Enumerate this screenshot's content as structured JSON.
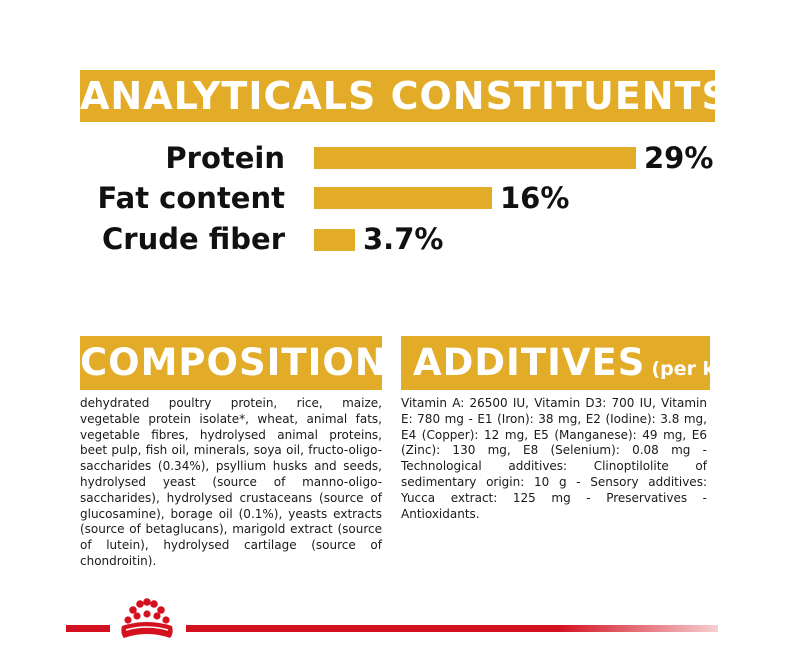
{
  "analyticals": {
    "title": "ANALYTICALS CONSTITUENTS",
    "items": [
      {
        "label": "Protein",
        "value_text": "29%",
        "value": 29
      },
      {
        "label": "Fat content",
        "value_text": "16%",
        "value": 16
      },
      {
        "label": "Crude fiber",
        "value_text": "3.7%",
        "value": 3.7
      }
    ]
  },
  "composition": {
    "title": "COMPOSITION",
    "text": "dehydrated poultry protein, rice, maize, vegetable protein isolate*, wheat, animal fats, vegetable fibres, hydrolysed animal proteins, beet pulp, fish oil, minerals, soya oil, fructo-oligo-saccharides (0.34%), psyllium husks and seeds, hydrolysed yeast (source of manno-oligo-saccharides), hydrolysed crustaceans (source of glucosamine), borage oil (0.1%), yeasts extracts (source of betaglucans), marigold extract (source of lutein), hydrolysed cartilage (source of chondroitin)."
  },
  "additives": {
    "title": "ADDITIVES",
    "subtitle": "(per kg)",
    "text": "Vitamin A: 26500 IU, Vitamin D3: 700 IU, Vitamin E: 780 mg - E1 (Iron): 38 mg, E2 (Iodine): 3.8 mg, E4 (Copper): 12 mg, E5 (Manganese): 49 mg, E6 (Zinc): 130 mg, E8 (Selenium): 0.08 mg - Technological additives: Clinoptilolite of sedimentary origin: 10 g - Sensory additives: Yucca extract: 125 mg - Preservatives - Antioxidants."
  },
  "colors": {
    "accent": "#e3ac28",
    "brand_red": "#d4121f"
  },
  "icons": {
    "logo": "royal-canin-crown-icon"
  }
}
